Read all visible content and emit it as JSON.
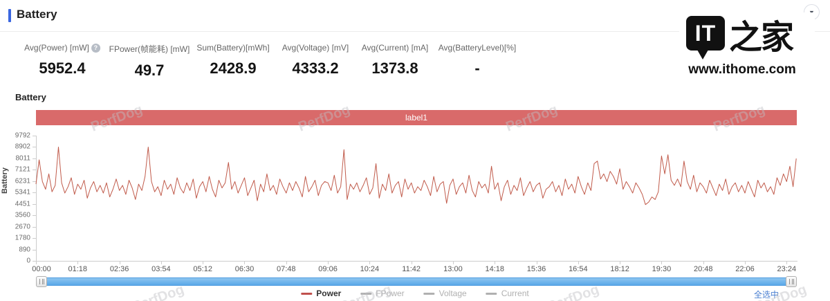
{
  "header": {
    "title": "Battery"
  },
  "controls": {
    "collapse_icon": "▼"
  },
  "logo": {
    "bubble_text": "IT",
    "brand_suffix": "之家",
    "url": "www.ithome.com"
  },
  "ui_icons": {
    "help": "?"
  },
  "stats": [
    {
      "label": "Avg(Power) [mW]",
      "value": "5952.4",
      "has_help": true
    },
    {
      "label": "FPower(帧能耗) [mW]",
      "value": "49.7",
      "has_help": false
    },
    {
      "label": "Sum(Battery)[mWh]",
      "value": "2428.9",
      "has_help": false
    },
    {
      "label": "Avg(Voltage) [mV]",
      "value": "4333.2",
      "has_help": false
    },
    {
      "label": "Avg(Current) [mA]",
      "value": "1373.8",
      "has_help": false
    },
    {
      "label": "Avg(BatteryLevel)[%]",
      "value": "-",
      "has_help": false
    }
  ],
  "chart_data": {
    "type": "line",
    "title": "Battery",
    "y_axis_label": "Battery",
    "ylim": [
      0,
      9792
    ],
    "y_ticks": [
      9792,
      8902,
      8011,
      7121,
      6231,
      5341,
      4451,
      3560,
      2670,
      1780,
      890,
      0
    ],
    "x_tick_labels": [
      "00:00",
      "01:18",
      "02:36",
      "03:54",
      "05:12",
      "06:30",
      "07:48",
      "09:06",
      "10:24",
      "11:42",
      "13:00",
      "14:18",
      "15:36",
      "16:54",
      "18:12",
      "19:30",
      "20:48",
      "22:06",
      "23:24"
    ],
    "x_tick_interval_min": 78,
    "x_total_min": 1423,
    "x_step_min": 6,
    "grid": false,
    "legend_position": "bottom",
    "watermark": "PerfDog",
    "mark_band": {
      "label": "label1",
      "color": "#d96a6a"
    },
    "series": [
      {
        "name": "Power",
        "color": "#c05a4a",
        "values": [
          6000,
          7900,
          6200,
          5600,
          6800,
          5400,
          5900,
          8902,
          6100,
          5300,
          5800,
          6500,
          5200,
          6000,
          5600,
          6300,
          4900,
          5700,
          6200,
          5400,
          5900,
          5300,
          6100,
          5000,
          5600,
          6400,
          5500,
          5900,
          5200,
          6300,
          5700,
          4800,
          6000,
          5500,
          6600,
          8900,
          6200,
          5400,
          5800,
          5100,
          6300,
          5600,
          6000,
          5200,
          6500,
          5700,
          5300,
          6100,
          5500,
          6400,
          4900,
          5800,
          6200,
          5400,
          6600,
          5600,
          5000,
          6300,
          5700,
          6100,
          7700,
          5600,
          6200,
          5300,
          5900,
          6500,
          5100,
          5700,
          6300,
          4700,
          6000,
          5400,
          6800,
          5500,
          5900,
          5200,
          6400,
          5800,
          5300,
          6100,
          5500,
          6200,
          5700,
          5000,
          6600,
          5400,
          5800,
          6300,
          5100,
          5900,
          6200,
          6100,
          5500,
          6700,
          5300,
          5800,
          8700,
          4800,
          6000,
          5600,
          6100,
          5400,
          5900,
          6500,
          5200,
          5700,
          7600,
          4900,
          6000,
          5500,
          6800,
          5300,
          5900,
          6200,
          5000,
          6400,
          5600,
          6100,
          5300,
          5800,
          5500,
          6300,
          5800,
          5100,
          6600,
          5400,
          6000,
          6200,
          4500,
          5900,
          6400,
          5200,
          5800,
          6100,
          5300,
          6700,
          5500,
          5000,
          6200,
          5700,
          6000,
          5300,
          7400,
          5600,
          6100,
          4700,
          5800,
          6300,
          5200,
          5900,
          5500,
          6500,
          5100,
          5700,
          6200,
          5400,
          5900,
          6100,
          4900,
          5600,
          5800,
          6200,
          5400,
          5900,
          5100,
          6400,
          5600,
          6000,
          5300,
          6600,
          5800,
          5200,
          6100,
          5500,
          7600,
          7800,
          6400,
          6800,
          6200,
          7000,
          6600,
          6000,
          7200,
          5600,
          6200,
          5800,
          5300,
          6100,
          5700,
          5200,
          4400,
          4600,
          5000,
          4800,
          5400,
          8200,
          6800,
          8300,
          6300,
          5900,
          6400,
          5800,
          7800,
          6200,
          5600,
          6700,
          5400,
          6100,
          5800,
          5300,
          6300,
          5700,
          5100,
          6000,
          5500,
          6400,
          5200,
          5800,
          6100,
          5400,
          5900,
          5300,
          6200,
          5600,
          5000,
          6300,
          5700,
          6100,
          5400,
          5800,
          5200,
          6500,
          5900,
          6800,
          6200,
          7400,
          5800,
          8000
        ]
      }
    ]
  },
  "legend": {
    "items": [
      {
        "label": "Power",
        "color": "#c0504d",
        "active": true
      },
      {
        "label": "FPower",
        "color": "#b0b0b0",
        "active": false
      },
      {
        "label": "Voltage",
        "color": "#b0b0b0",
        "active": false
      },
      {
        "label": "Current",
        "color": "#b0b0b0",
        "active": false
      }
    ],
    "select_all": "全选中"
  }
}
